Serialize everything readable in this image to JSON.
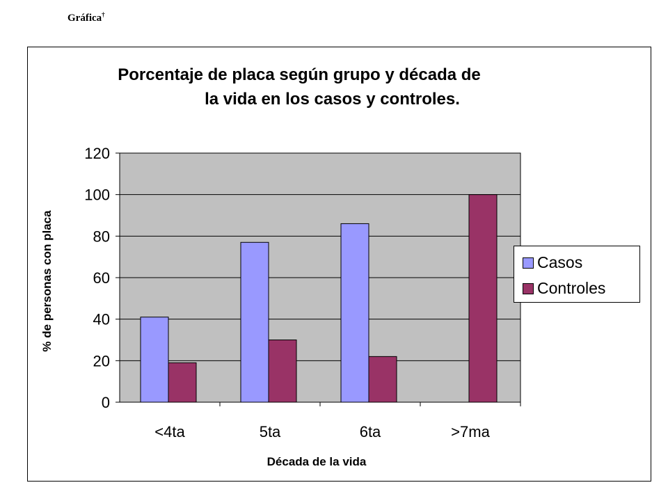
{
  "caption": {
    "text": "Gráfica",
    "superscript": "†"
  },
  "colors": {
    "plot_bg": "#c0c0c0",
    "casos": "#9999ff",
    "controles": "#993366",
    "grid": "#000000"
  },
  "chart_data": {
    "type": "bar",
    "title": "Porcentaje de placa según grupo y década de la vida en los casos y controles.",
    "title_lines": [
      "Porcentaje de placa según grupo y década de",
      "la vida en los casos y controles."
    ],
    "xlabel": "Década de la vida",
    "ylabel": "% de personas con placa",
    "categories": [
      "<4ta",
      "5ta",
      "6ta",
      ">7ma"
    ],
    "series": [
      {
        "name": "Casos",
        "values": [
          41,
          77,
          86,
          0
        ]
      },
      {
        "name": "Controles",
        "values": [
          19,
          30,
          22,
          100
        ]
      }
    ],
    "ylim": [
      0,
      120
    ],
    "yticks": [
      0,
      20,
      40,
      60,
      80,
      100,
      120
    ],
    "grid": true,
    "legend_position": "right"
  }
}
